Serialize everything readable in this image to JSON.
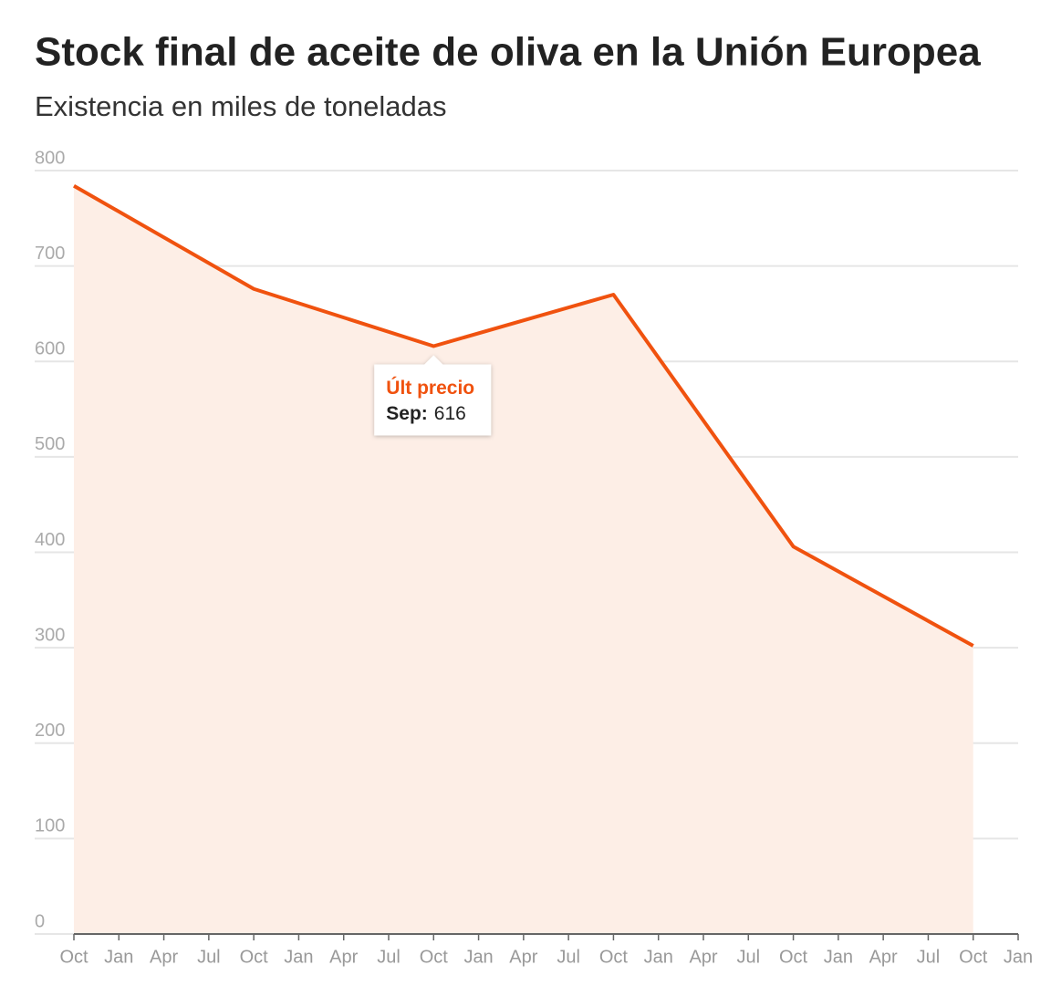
{
  "chart_data": {
    "type": "area",
    "title": "Stock final de aceite de oliva en la Unión Europea",
    "subtitle": "Existencia en miles de toneladas",
    "x": [
      0,
      12,
      24,
      36,
      48,
      60
    ],
    "xlim": [
      0,
      63
    ],
    "xticks": [
      {
        "value": 0,
        "label": "Oct"
      },
      {
        "value": 3,
        "label": "Jan"
      },
      {
        "value": 6,
        "label": "Apr"
      },
      {
        "value": 9,
        "label": "Jul"
      },
      {
        "value": 12,
        "label": "Oct"
      },
      {
        "value": 15,
        "label": "Jan"
      },
      {
        "value": 18,
        "label": "Apr"
      },
      {
        "value": 21,
        "label": "Jul"
      },
      {
        "value": 24,
        "label": "Oct"
      },
      {
        "value": 27,
        "label": "Jan"
      },
      {
        "value": 30,
        "label": "Apr"
      },
      {
        "value": 33,
        "label": "Jul"
      },
      {
        "value": 36,
        "label": "Oct"
      },
      {
        "value": 39,
        "label": "Jan"
      },
      {
        "value": 42,
        "label": "Apr"
      },
      {
        "value": 45,
        "label": "Jul"
      },
      {
        "value": 48,
        "label": "Oct"
      },
      {
        "value": 51,
        "label": "Jan"
      },
      {
        "value": 54,
        "label": "Apr"
      },
      {
        "value": 57,
        "label": "Jul"
      },
      {
        "value": 60,
        "label": "Oct"
      },
      {
        "value": 63,
        "label": "Jan"
      }
    ],
    "series": [
      {
        "color": "#f0520f",
        "fill": "#fdeee6",
        "values": [
          784,
          676,
          616,
          670,
          406,
          302
        ]
      }
    ],
    "ylim": [
      0,
      800
    ],
    "yticks": [
      0,
      100,
      200,
      300,
      400,
      500,
      600,
      700,
      800
    ],
    "grid": true,
    "annotation": {
      "title": "Últ precio",
      "label": "Sep:",
      "point": 2
    }
  }
}
